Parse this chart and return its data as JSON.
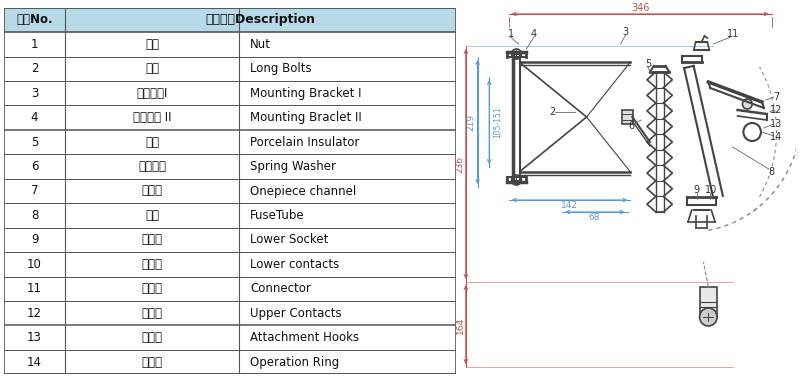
{
  "table_header_no": "编号No.",
  "table_header_desc": "部件名称Description",
  "header_bg": "#b8d9e8",
  "table_border_color": "#555555",
  "rows": [
    {
      "no": "1",
      "cn": "螺母",
      "en": "Nut"
    },
    {
      "no": "2",
      "cn": "螺杆",
      "en": "Long Bolts"
    },
    {
      "no": "3",
      "cn": "安装支架I",
      "en": "Mounting Bracket I"
    },
    {
      "no": "4",
      "cn": "安装支架 II",
      "en": "Mounting Braclet II"
    },
    {
      "no": "5",
      "cn": "瓷件",
      "en": "Porcelain Insulator"
    },
    {
      "no": "6",
      "cn": "弹簧垫圈",
      "en": "Spring Washer"
    },
    {
      "no": "7",
      "cn": "上盖槽",
      "en": "Onepiece channel"
    },
    {
      "no": "8",
      "cn": "熔管",
      "en": "FuseTube"
    },
    {
      "no": "9",
      "cn": "下支座",
      "en": "Lower Socket"
    },
    {
      "no": "10",
      "cn": "下触头",
      "en": "Lower contacts"
    },
    {
      "no": "11",
      "cn": "接线端",
      "en": "Connector"
    },
    {
      "no": "12",
      "cn": "上触头",
      "en": "Upper Contacts"
    },
    {
      "no": "13",
      "cn": "导向钩",
      "en": "Attachment Hooks"
    },
    {
      "no": "14",
      "cn": "操作环",
      "en": "Operation Ring"
    }
  ],
  "bg_color": "#ffffff",
  "dim_red": "#c0504d",
  "dim_blue": "#5b9bd5",
  "ref_color": "#d99694",
  "ref_blue": "#9dc3e6",
  "draw_color": "#444444",
  "ann_color": "#333333"
}
